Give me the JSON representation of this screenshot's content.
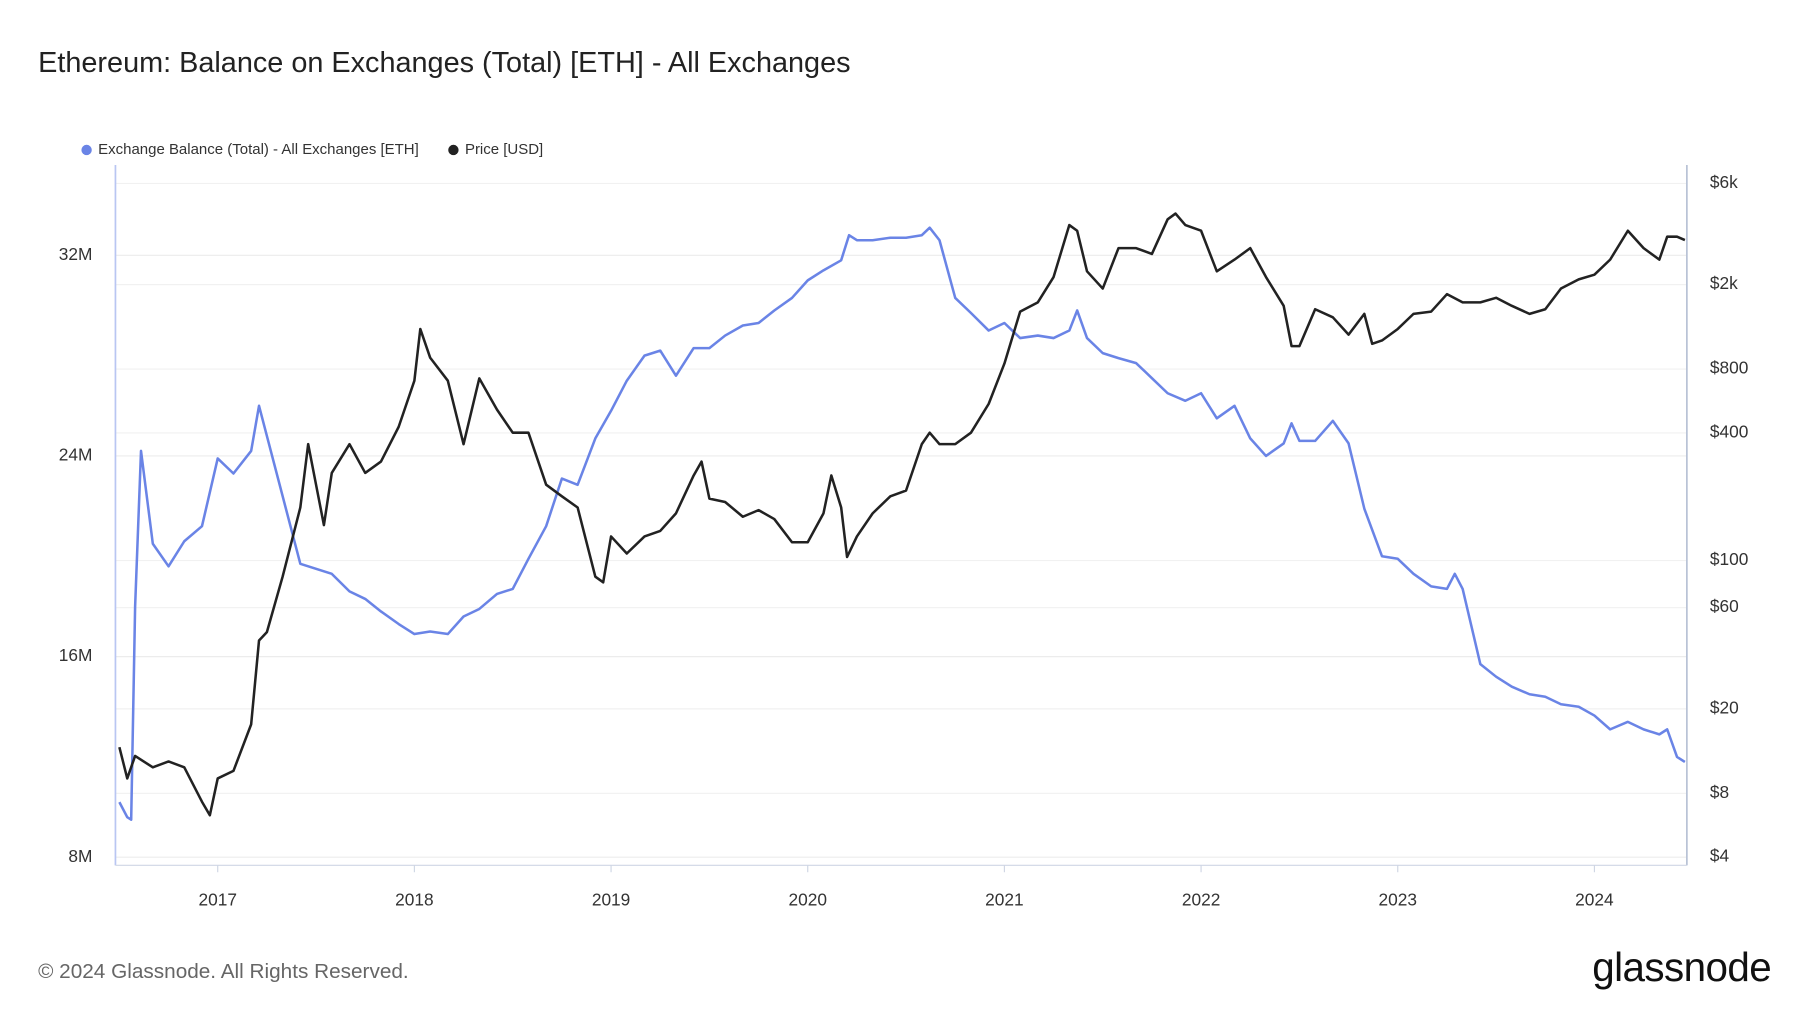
{
  "chart_data": {
    "type": "line",
    "title": "Ethereum: Balance on Exchanges (Total) [ETH] - All Exchanges",
    "legend": "top-left",
    "y2scale": "log",
    "xlim": [
      2016.48,
      2024.47
    ],
    "xticks": [
      2017,
      2018,
      2019,
      2020,
      2021,
      2022,
      2023,
      2024
    ],
    "ylim": [
      7680000,
      35600000
    ],
    "yticks": [
      {
        "value": 8000000,
        "label": "8M"
      },
      {
        "value": 16000000,
        "label": "16M"
      },
      {
        "value": 24000000,
        "label": "24M"
      },
      {
        "value": 32000000,
        "label": "32M"
      }
    ],
    "y2lim": [
      3.66,
      7330
    ],
    "y2ticks": [
      {
        "value": 4,
        "label": "$4"
      },
      {
        "value": 8,
        "label": "$8"
      },
      {
        "value": 20,
        "label": "$20"
      },
      {
        "value": 60,
        "label": "$60"
      },
      {
        "value": 100,
        "label": "$100"
      },
      {
        "value": 400,
        "label": "$400"
      },
      {
        "value": 800,
        "label": "$800"
      },
      {
        "value": 2000,
        "label": "$2k"
      },
      {
        "value": 6000,
        "label": "$6k"
      }
    ],
    "series": [
      {
        "name": "Exchange Balance (Total) - All Exchanges [ETH]",
        "color": "#6a84e6",
        "axis": "y",
        "x": [
          2016.5,
          2016.54,
          2016.56,
          2016.58,
          2016.61,
          2016.67,
          2016.75,
          2016.83,
          2016.92,
          2017.0,
          2017.08,
          2017.17,
          2017.21,
          2017.25,
          2017.33,
          2017.42,
          2017.5,
          2017.58,
          2017.67,
          2017.75,
          2017.83,
          2017.92,
          2018.0,
          2018.08,
          2018.17,
          2018.25,
          2018.33,
          2018.42,
          2018.5,
          2018.58,
          2018.67,
          2018.75,
          2018.83,
          2018.92,
          2019.0,
          2019.08,
          2019.17,
          2019.25,
          2019.33,
          2019.42,
          2019.5,
          2019.58,
          2019.67,
          2019.75,
          2019.83,
          2019.92,
          2020.0,
          2020.08,
          2020.17,
          2020.21,
          2020.25,
          2020.33,
          2020.42,
          2020.5,
          2020.58,
          2020.62,
          2020.67,
          2020.75,
          2020.83,
          2020.92,
          2021.0,
          2021.08,
          2021.17,
          2021.25,
          2021.33,
          2021.37,
          2021.42,
          2021.5,
          2021.58,
          2021.67,
          2021.75,
          2021.83,
          2021.92,
          2022.0,
          2022.08,
          2022.17,
          2022.25,
          2022.33,
          2022.42,
          2022.46,
          2022.5,
          2022.58,
          2022.67,
          2022.75,
          2022.83,
          2022.92,
          2023.0,
          2023.08,
          2023.17,
          2023.25,
          2023.29,
          2023.33,
          2023.42,
          2023.5,
          2023.58,
          2023.67,
          2023.75,
          2023.83,
          2023.92,
          2024.0,
          2024.08,
          2024.17,
          2024.25,
          2024.33,
          2024.37,
          2024.42,
          2024.46
        ],
        "values": [
          10200000,
          9600000,
          9500000,
          18000000,
          24200000,
          20500000,
          19600000,
          20600000,
          21200000,
          23900000,
          23300000,
          24200000,
          26000000,
          24800000,
          22400000,
          19700000,
          19500000,
          19300000,
          18600000,
          18300000,
          17800000,
          17300000,
          16900000,
          17000000,
          16900000,
          17600000,
          17900000,
          18500000,
          18700000,
          19900000,
          21200000,
          23100000,
          22850000,
          24700000,
          25800000,
          27000000,
          28000000,
          28200000,
          27200000,
          28300000,
          28300000,
          28800000,
          29200000,
          29300000,
          29800000,
          30300000,
          31000000,
          31400000,
          31800000,
          32800000,
          32600000,
          32600000,
          32700000,
          32700000,
          32800000,
          33100000,
          32600000,
          30300000,
          29700000,
          29000000,
          29300000,
          28700000,
          28800000,
          28700000,
          29000000,
          29800000,
          28700000,
          28100000,
          27900000,
          27700000,
          27100000,
          26500000,
          26200000,
          26500000,
          25500000,
          26000000,
          24700000,
          24000000,
          24500000,
          25300000,
          24600000,
          24600000,
          25400000,
          24500000,
          21900000,
          20000000,
          19900000,
          19300000,
          18800000,
          18700000,
          19300000,
          18700000,
          15700000,
          15200000,
          14800000,
          14500000,
          14400000,
          14100000,
          14000000,
          13650000,
          13100000,
          13400000,
          13100000,
          12900000,
          13100000,
          12000000,
          11800000
        ]
      },
      {
        "name": "Price [USD]",
        "color": "#222222",
        "axis": "y2",
        "x": [
          2016.5,
          2016.54,
          2016.58,
          2016.67,
          2016.75,
          2016.83,
          2016.92,
          2016.96,
          2017.0,
          2017.08,
          2017.17,
          2017.21,
          2017.25,
          2017.33,
          2017.42,
          2017.46,
          2017.5,
          2017.54,
          2017.58,
          2017.67,
          2017.75,
          2017.83,
          2017.92,
          2018.0,
          2018.03,
          2018.08,
          2018.17,
          2018.25,
          2018.33,
          2018.42,
          2018.5,
          2018.58,
          2018.67,
          2018.75,
          2018.83,
          2018.92,
          2018.96,
          2019.0,
          2019.08,
          2019.17,
          2019.25,
          2019.33,
          2019.42,
          2019.46,
          2019.5,
          2019.58,
          2019.67,
          2019.75,
          2019.83,
          2019.92,
          2020.0,
          2020.08,
          2020.12,
          2020.17,
          2020.2,
          2020.25,
          2020.33,
          2020.42,
          2020.5,
          2020.58,
          2020.62,
          2020.67,
          2020.75,
          2020.83,
          2020.92,
          2021.0,
          2021.08,
          2021.17,
          2021.25,
          2021.33,
          2021.37,
          2021.42,
          2021.5,
          2021.58,
          2021.67,
          2021.75,
          2021.83,
          2021.87,
          2021.92,
          2022.0,
          2022.08,
          2022.17,
          2022.25,
          2022.33,
          2022.42,
          2022.46,
          2022.5,
          2022.58,
          2022.67,
          2022.75,
          2022.83,
          2022.87,
          2022.92,
          2023.0,
          2023.08,
          2023.17,
          2023.25,
          2023.33,
          2023.42,
          2023.5,
          2023.58,
          2023.67,
          2023.75,
          2023.83,
          2023.92,
          2024.0,
          2024.08,
          2024.17,
          2024.25,
          2024.33,
          2024.37,
          2024.42,
          2024.46
        ],
        "values": [
          13.2,
          9.4,
          12,
          10.6,
          11.3,
          10.6,
          7.3,
          6.3,
          9.4,
          10.2,
          16.9,
          42,
          46,
          84,
          178,
          354,
          228,
          147,
          259,
          354,
          259,
          293,
          427,
          705,
          1236,
          906,
          705,
          354,
          723,
          515,
          401,
          401,
          228,
          201,
          178,
          84,
          79,
          130,
          108,
          130,
          138,
          167,
          252,
          293,
          196,
          189,
          161,
          173,
          157,
          122,
          122,
          167,
          252,
          178,
          104,
          130,
          167,
          201,
          214,
          354,
          401,
          354,
          354,
          401,
          548,
          849,
          1493,
          1650,
          2172,
          3819,
          3590,
          2311,
          1917,
          2972,
          2972,
          2791,
          4064,
          4325,
          3819,
          3590,
          2311,
          2624,
          2972,
          2172,
          1589,
          1026,
          1026,
          1531,
          1403,
          1162,
          1456,
          1052,
          1091,
          1236,
          1456,
          1493,
          1803,
          1650,
          1650,
          1734,
          1589,
          1456,
          1531,
          1917,
          2118,
          2228,
          2624,
          3590,
          2972,
          2624,
          3365,
          3365,
          3245
        ]
      }
    ]
  },
  "footer": {
    "copyright": "© 2024 Glassnode. All Rights Reserved.",
    "brand": "glassnode"
  }
}
